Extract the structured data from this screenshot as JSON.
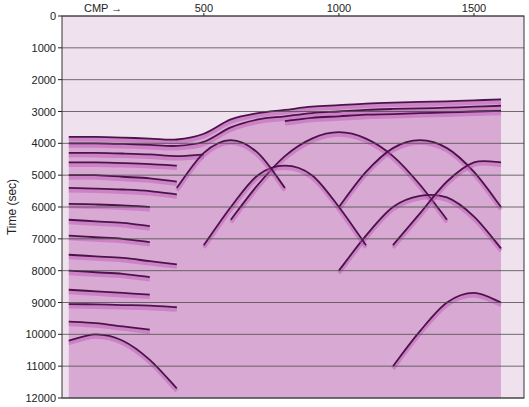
{
  "chart_data": {
    "type": "line",
    "x_label": "CMP →",
    "y_label": "Time (sec)",
    "color": "#4a1448",
    "xlim": [
      -25,
      1685
    ],
    "ylim": [
      0,
      12000
    ],
    "xticks": [
      500,
      1000,
      1500
    ],
    "yticks": [
      0,
      1000,
      2000,
      3000,
      4000,
      5000,
      6000,
      7000,
      8000,
      9000,
      10000,
      11000,
      12000
    ],
    "grid": true,
    "x": [
      0,
      100,
      200,
      300,
      400,
      500,
      600,
      700,
      800,
      900,
      1000,
      1100,
      1200,
      1300,
      1400,
      1500,
      1600
    ],
    "series": [
      {
        "values": [
          3800,
          3800,
          3820,
          3850,
          3880,
          3700,
          3250,
          3050,
          2950,
          2850,
          2800,
          2750,
          2720,
          2700,
          2680,
          2650,
          2620
        ]
      },
      {
        "values": [
          4000,
          4000,
          4020,
          4050,
          4080,
          3950,
          3500,
          3250,
          3150,
          3050,
          3000,
          2950,
          2920,
          2900,
          2880,
          2850,
          2820
        ]
      },
      {
        "values": [
          4300,
          4300,
          4320,
          4350,
          4400,
          4350,
          null,
          null,
          3300,
          3200,
          3150,
          3100,
          3080,
          3050,
          3030,
          3000,
          2980
        ]
      },
      {
        "values": [
          4600,
          4600,
          4620,
          4650,
          4700,
          null,
          null,
          null,
          null,
          null,
          null,
          null,
          null,
          null,
          null,
          null,
          null
        ]
      },
      {
        "values": [
          5000,
          5000,
          5050,
          5100,
          5200,
          null,
          null,
          null,
          null,
          null,
          null,
          null,
          null,
          null,
          null,
          null,
          null
        ]
      },
      {
        "values": [
          5400,
          5420,
          5450,
          5500,
          5600,
          null,
          null,
          null,
          null,
          null,
          null,
          null,
          null,
          null,
          null,
          null,
          null
        ]
      },
      {
        "values": [
          5900,
          5920,
          5950,
          6000,
          null,
          null,
          null,
          null,
          null,
          null,
          null,
          null,
          null,
          null,
          null,
          null,
          null
        ]
      },
      {
        "values": [
          6400,
          6450,
          6500,
          6600,
          null,
          null,
          null,
          null,
          null,
          null,
          null,
          null,
          null,
          null,
          null,
          null,
          null
        ]
      },
      {
        "values": [
          6900,
          6950,
          7000,
          7100,
          null,
          null,
          null,
          null,
          null,
          null,
          null,
          null,
          null,
          null,
          null,
          null,
          null
        ]
      },
      {
        "values": [
          7500,
          7550,
          7600,
          7700,
          7800,
          null,
          null,
          null,
          null,
          null,
          null,
          null,
          null,
          null,
          null,
          null,
          null
        ]
      },
      {
        "values": [
          8000,
          8050,
          8100,
          8200,
          null,
          null,
          null,
          null,
          null,
          null,
          null,
          null,
          null,
          null,
          null,
          null,
          null
        ]
      },
      {
        "values": [
          8600,
          8650,
          8700,
          8750,
          null,
          null,
          null,
          null,
          null,
          null,
          null,
          null,
          null,
          null,
          null,
          null,
          null
        ]
      },
      {
        "values": [
          9050,
          9060,
          9080,
          9100,
          9150,
          null,
          null,
          null,
          null,
          null,
          null,
          null,
          null,
          null,
          null,
          null,
          null
        ]
      },
      {
        "values": [
          9600,
          9650,
          9750,
          9850,
          null,
          null,
          null,
          null,
          null,
          null,
          null,
          null,
          null,
          null,
          null,
          null,
          null
        ]
      },
      {
        "values": [
          null,
          null,
          null,
          null,
          null,
          null,
          6400,
          5300,
          4400,
          3850,
          3650,
          3850,
          4400,
          5300,
          6400,
          null,
          null
        ]
      },
      {
        "values": [
          null,
          null,
          null,
          null,
          null,
          null,
          null,
          null,
          null,
          null,
          6000,
          4900,
          4150,
          3900,
          4150,
          4900,
          6000
        ]
      },
      {
        "values": [
          null,
          null,
          null,
          null,
          null,
          null,
          null,
          null,
          null,
          null,
          8000,
          6900,
          6000,
          5650,
          5700,
          6300,
          7300
        ]
      },
      {
        "values": [
          null,
          null,
          null,
          null,
          null,
          7200,
          6000,
          5000,
          4700,
          5000,
          6000,
          7200,
          null,
          null,
          null,
          null,
          null
        ]
      },
      {
        "values": [
          null,
          null,
          null,
          null,
          null,
          null,
          null,
          null,
          null,
          null,
          null,
          null,
          7200,
          6200,
          5200,
          4600,
          4600
        ]
      },
      {
        "values": [
          null,
          null,
          null,
          null,
          5400,
          4300,
          3900,
          4300,
          5400,
          null,
          null,
          null,
          null,
          null,
          null,
          null,
          null
        ]
      },
      {
        "values": [
          10200,
          10000,
          10200,
          10800,
          11700,
          null,
          null,
          null,
          null,
          null,
          null,
          null,
          null,
          null,
          null,
          null,
          null
        ]
      },
      {
        "values": [
          null,
          null,
          null,
          null,
          null,
          null,
          null,
          null,
          null,
          null,
          null,
          null,
          11000,
          9900,
          9000,
          8700,
          9000
        ]
      }
    ]
  }
}
